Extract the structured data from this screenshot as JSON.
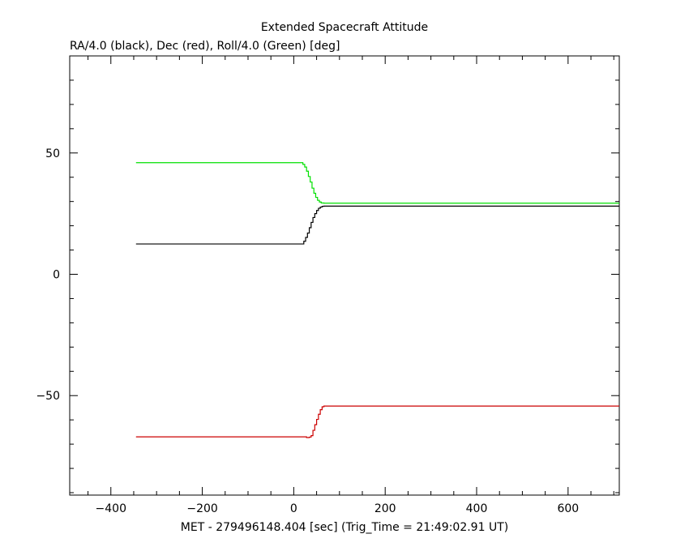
{
  "chart_data": {
    "type": "line",
    "title": "Extended Spacecraft Attitude",
    "subtitle": "RA/4.0 (black), Dec (red), Roll/4.0 (Green) [deg]",
    "xlabel": "MET - 279496148.404 [sec] (Trig_Time = 21:49:02.91 UT)",
    "ylabel": "",
    "xlim": [
      -490,
      712
    ],
    "ylim": [
      -91,
      90
    ],
    "xticks": [
      -400,
      -200,
      0,
      200,
      400,
      600
    ],
    "xtick_labels": [
      "−400",
      "−200",
      "0",
      "200",
      "400",
      "600"
    ],
    "yticks": [
      -50,
      0,
      50
    ],
    "ytick_labels": [
      "−50",
      "0",
      "50"
    ],
    "x_minor_step": 50,
    "y_minor_step": 10,
    "grid": false,
    "series": [
      {
        "color": "#000000",
        "step": true,
        "x": [
          -345,
          18,
          22,
          26,
          30,
          34,
          38,
          42,
          46,
          50,
          54,
          58,
          62,
          66,
          712
        ],
        "y": [
          12.5,
          12.5,
          13.6,
          15.2,
          17.0,
          19.2,
          21.4,
          23.4,
          25.0,
          26.3,
          27.2,
          27.7,
          28.0,
          28.1,
          28.1
        ]
      },
      {
        "color": "#cc0000",
        "step": true,
        "x": [
          -345,
          20,
          28,
          34,
          38,
          42,
          46,
          50,
          54,
          58,
          62,
          66,
          712
        ],
        "y": [
          -67.0,
          -67.0,
          -67.3,
          -67.1,
          -66.5,
          -64.3,
          -62.0,
          -59.8,
          -57.7,
          -55.8,
          -54.6,
          -54.3,
          -54.3
        ]
      },
      {
        "color": "#00e000",
        "step": true,
        "x": [
          -345,
          15,
          20,
          24,
          28,
          32,
          36,
          40,
          44,
          48,
          52,
          56,
          60,
          66,
          712
        ],
        "y": [
          46.0,
          46.0,
          45.3,
          44.2,
          42.5,
          40.3,
          38.0,
          35.5,
          33.4,
          31.7,
          30.5,
          29.8,
          29.4,
          29.3,
          29.3
        ]
      }
    ]
  }
}
